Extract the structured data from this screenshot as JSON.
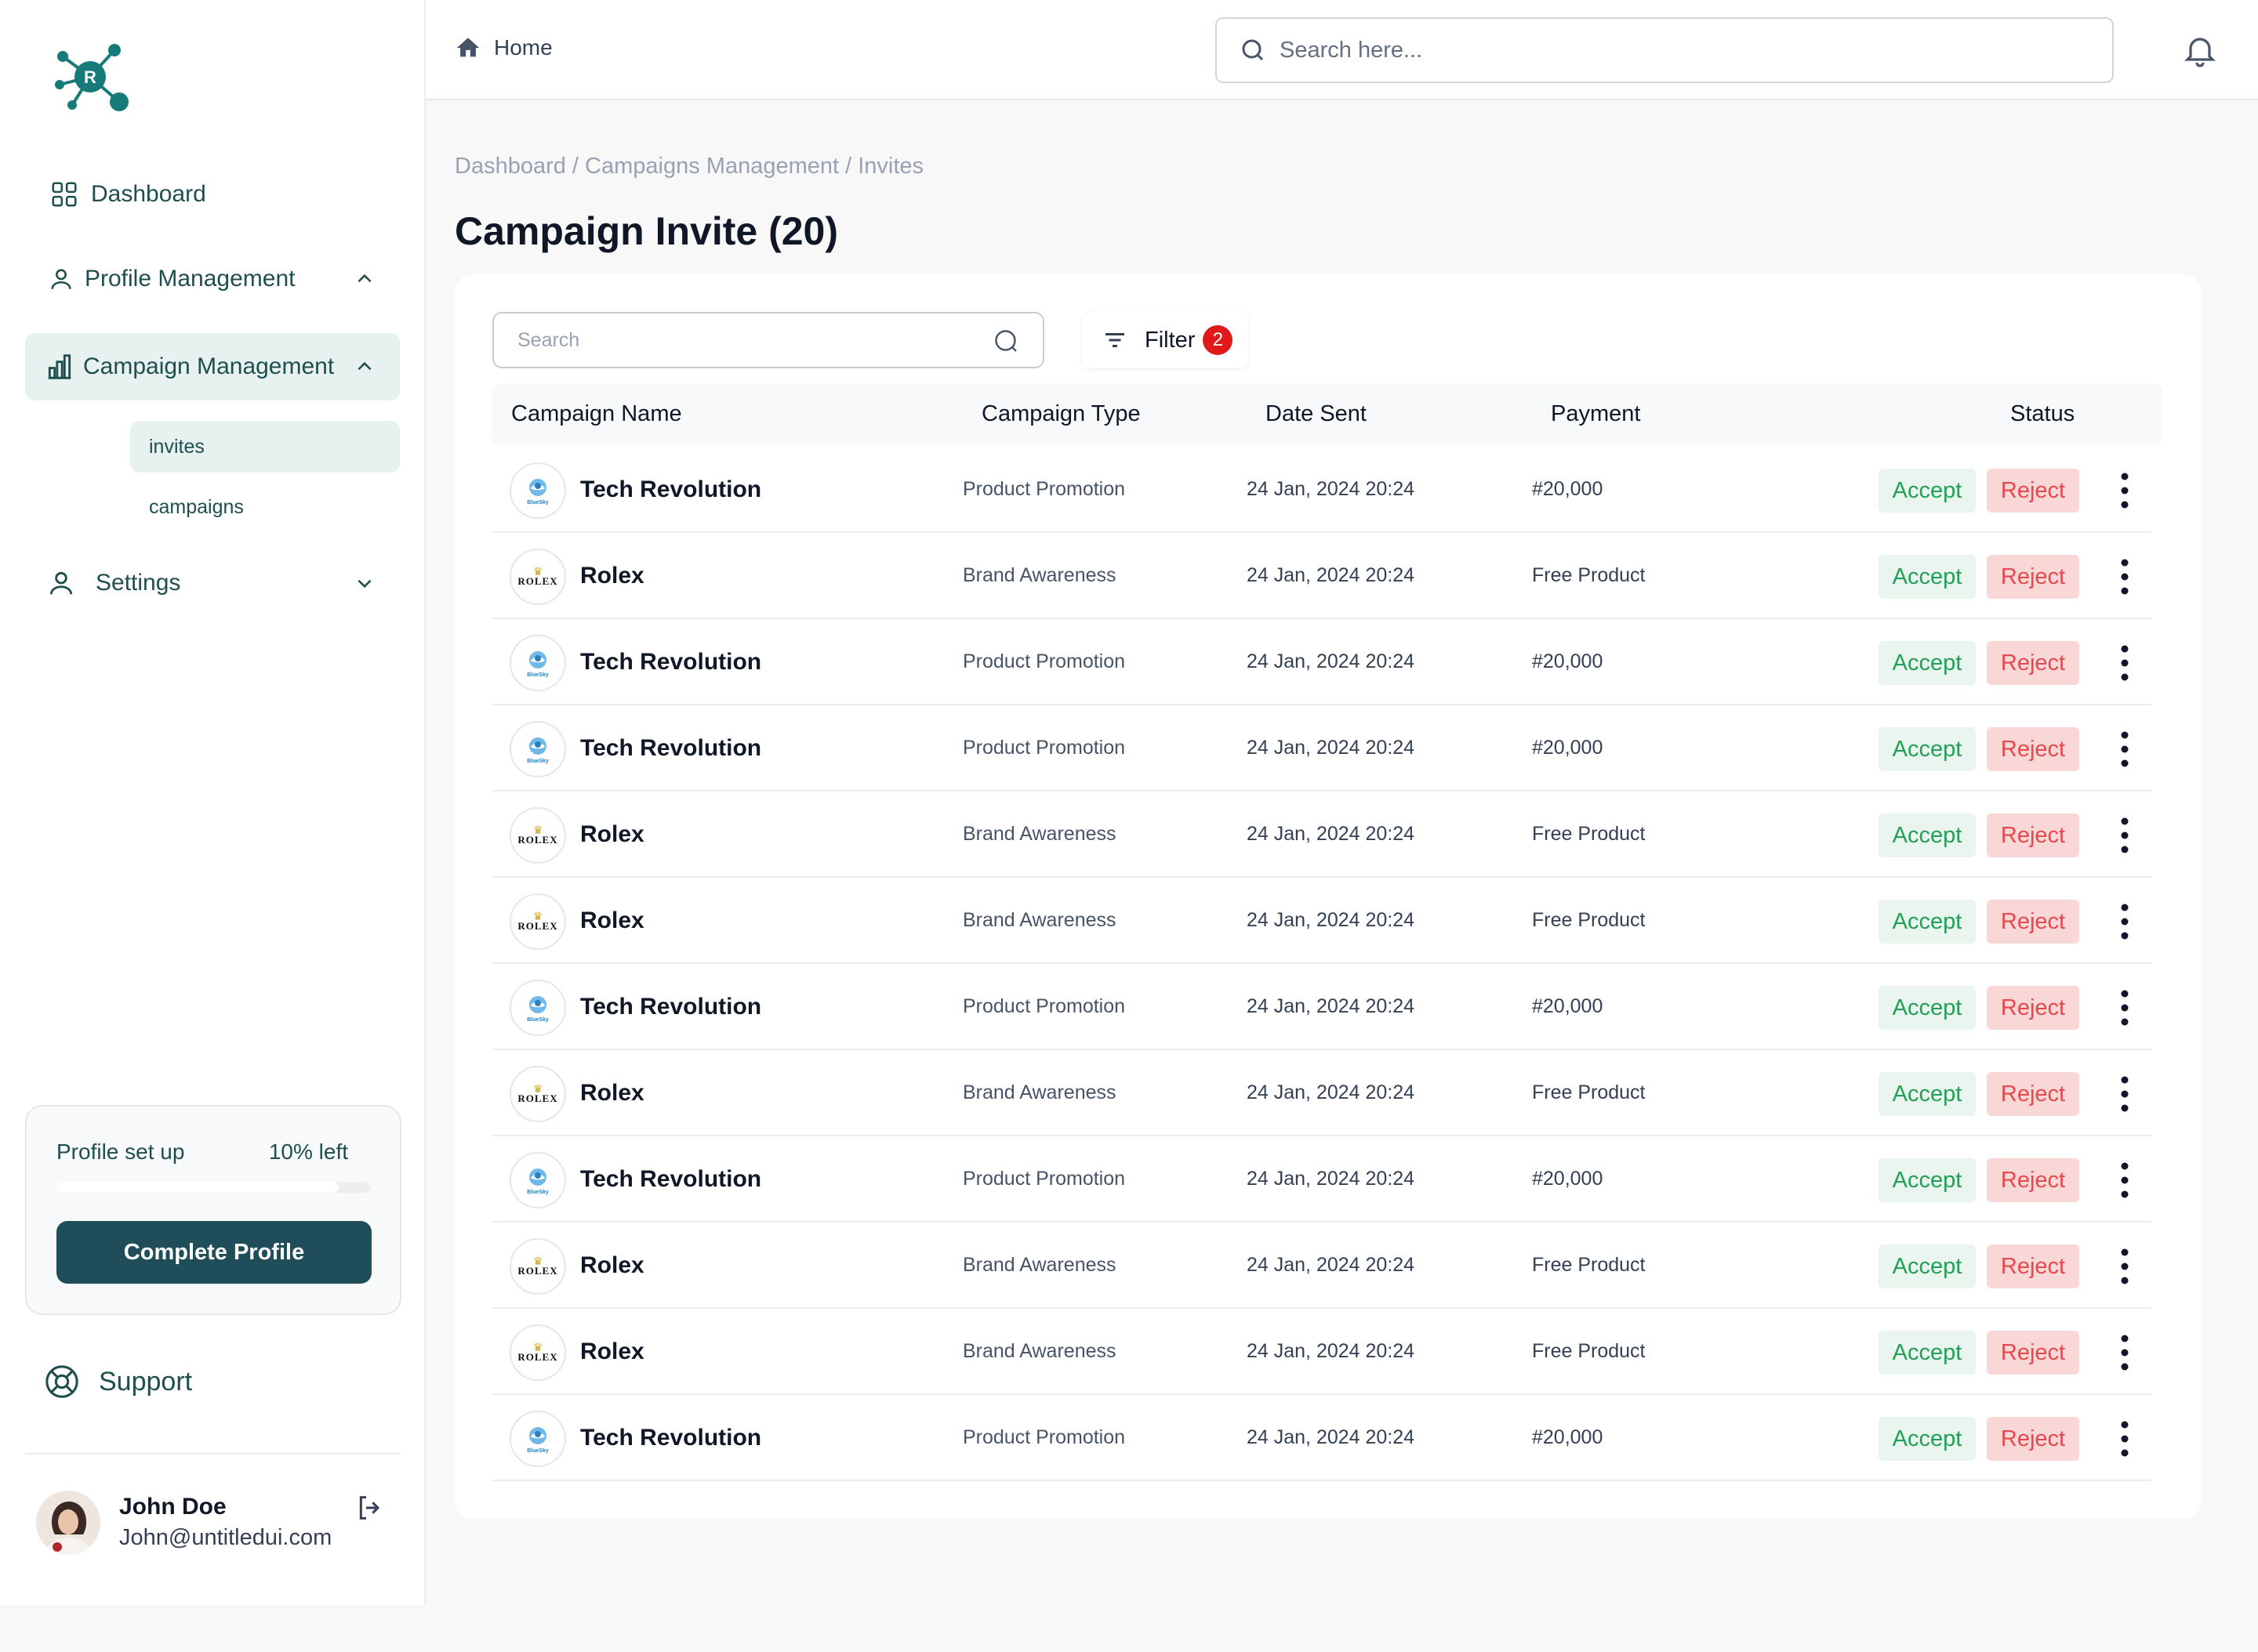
{
  "colors": {
    "brand": "#1f4e5a",
    "accent_teal": "#157a78",
    "accept_text": "#23a057",
    "reject_text": "#e5484d",
    "badge": "#e01a1a"
  },
  "sidebar": {
    "logo_letter": "R",
    "items": [
      {
        "label": "Dashboard",
        "icon": "grid-icon"
      },
      {
        "label": "Profile Management",
        "icon": "user-icon"
      },
      {
        "label": "Campaign Management",
        "icon": "bar-chart-icon"
      },
      {
        "label": "Settings",
        "icon": "user-icon"
      }
    ],
    "sub_items": [
      {
        "label": "invites"
      },
      {
        "label": "campaigns"
      }
    ],
    "setup": {
      "label": "Profile set up",
      "left_text": "10% left",
      "progress_percent": 90,
      "button_label": "Complete Profile"
    },
    "support_label": "Support",
    "user": {
      "name": "John Doe",
      "email": "John@untitledui.com"
    }
  },
  "topbar": {
    "home_label": "Home",
    "search_placeholder": "Search here..."
  },
  "main": {
    "breadcrumb": "Dashboard / Campaigns Management  / Invites",
    "title": "Campaign Invite (20)",
    "table_search_placeholder": "Search",
    "filter_label": "Filter",
    "filter_count": "2",
    "columns": [
      "Campaign Name",
      "Campaign Type",
      "Date Sent",
      "Payment",
      "Status"
    ],
    "accept_label": "Accept",
    "reject_label": "Reject",
    "rows": [
      {
        "name": "Tech Revolution",
        "brand": "bluesky",
        "type": "Product Promotion",
        "date": "24 Jan, 2024  20:24",
        "payment": "#20,000"
      },
      {
        "name": "Rolex",
        "brand": "rolex",
        "type": "Brand Awareness",
        "date": "24 Jan, 2024  20:24",
        "payment": "Free Product"
      },
      {
        "name": "Tech Revolution",
        "brand": "bluesky",
        "type": "Product Promotion",
        "date": "24 Jan, 2024  20:24",
        "payment": "#20,000"
      },
      {
        "name": "Tech Revolution",
        "brand": "bluesky",
        "type": "Product Promotion",
        "date": "24 Jan, 2024  20:24",
        "payment": "#20,000"
      },
      {
        "name": "Rolex",
        "brand": "rolex",
        "type": "Brand Awareness",
        "date": "24 Jan, 2024  20:24",
        "payment": "Free Product"
      },
      {
        "name": "Rolex",
        "brand": "rolex",
        "type": "Brand Awareness",
        "date": "24 Jan, 2024  20:24",
        "payment": "Free Product"
      },
      {
        "name": "Tech Revolution",
        "brand": "bluesky",
        "type": "Product Promotion",
        "date": "24 Jan, 2024  20:24",
        "payment": "#20,000"
      },
      {
        "name": "Rolex",
        "brand": "rolex",
        "type": "Brand Awareness",
        "date": "24 Jan, 2024  20:24",
        "payment": "Free Product"
      },
      {
        "name": "Tech Revolution",
        "brand": "bluesky",
        "type": "Product Promotion",
        "date": "24 Jan, 2024  20:24",
        "payment": "#20,000"
      },
      {
        "name": "Rolex",
        "brand": "rolex",
        "type": "Brand Awareness",
        "date": "24 Jan, 2024  20:24",
        "payment": "Free Product"
      },
      {
        "name": "Rolex",
        "brand": "rolex",
        "type": "Brand Awareness",
        "date": "24 Jan, 2024  20:24",
        "payment": "Free Product"
      },
      {
        "name": "Tech Revolution",
        "brand": "bluesky",
        "type": "Product Promotion",
        "date": "24 Jan, 2024  20:24",
        "payment": "#20,000"
      }
    ]
  }
}
